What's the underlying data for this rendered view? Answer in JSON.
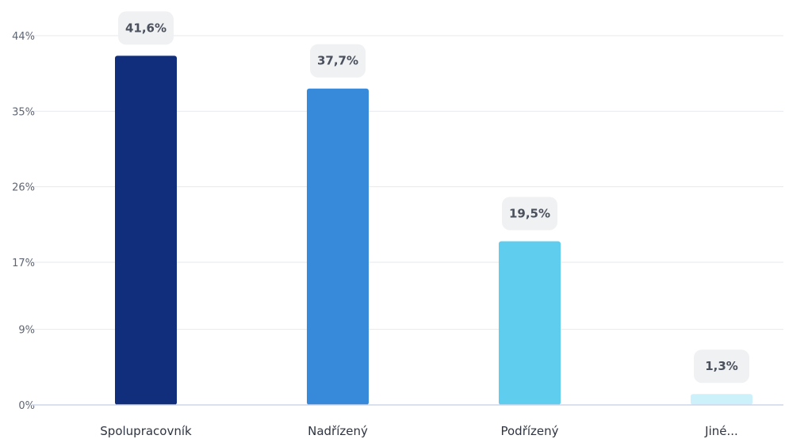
{
  "chart_data": {
    "type": "bar",
    "categories": [
      "Spolupracovník",
      "Nadřízený",
      "Podřízený",
      "Jiné..."
    ],
    "values": [
      41.6,
      37.7,
      19.5,
      1.3
    ],
    "value_labels": [
      "41,6%",
      "37,7%",
      "19,5%",
      "1,3%"
    ],
    "bar_colors": [
      "#112e7d",
      "#3789d9",
      "#5ecdee",
      "#cdf1fb"
    ],
    "yticks": [
      0,
      9,
      17,
      26,
      35,
      44
    ],
    "ytick_labels": [
      "0%",
      "9%",
      "17%",
      "26%",
      "35%",
      "44%"
    ],
    "ylim": [
      0,
      44
    ],
    "grid": true,
    "title": "",
    "xlabel": "",
    "ylabel": ""
  }
}
